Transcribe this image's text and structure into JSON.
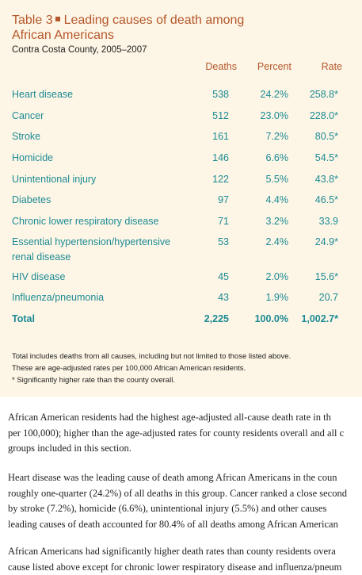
{
  "table": {
    "title_prefix": "Table 3",
    "title_rest": "Leading causes of death among",
    "title_line2": "African Americans",
    "subtitle": "Contra Costa County, 2005–2007",
    "columns": [
      "Deaths",
      "Percent",
      "Rate"
    ],
    "rows": [
      {
        "cause": "Heart disease",
        "deaths": "538",
        "percent": "24.2%",
        "rate": "258.8*"
      },
      {
        "cause": "Cancer",
        "deaths": "512",
        "percent": "23.0%",
        "rate": "228.0*"
      },
      {
        "cause": "Stroke",
        "deaths": "161",
        "percent": "7.2%",
        "rate": "80.5*"
      },
      {
        "cause": "Homicide",
        "deaths": "146",
        "percent": "6.6%",
        "rate": "54.5*"
      },
      {
        "cause": "Unintentional injury",
        "deaths": "122",
        "percent": "5.5%",
        "rate": "43.8*"
      },
      {
        "cause": "Diabetes",
        "deaths": "97",
        "percent": "4.4%",
        "rate": "46.5*"
      },
      {
        "cause": "Chronic lower respiratory disease",
        "deaths": "71",
        "percent": "3.2%",
        "rate": "33.9"
      },
      {
        "cause": "Essential hypertension/hypertensive",
        "cause2": "renal disease",
        "deaths": "53",
        "percent": "2.4%",
        "rate": "24.9*"
      },
      {
        "cause": "HIV disease",
        "deaths": "45",
        "percent": "2.0%",
        "rate": "15.6*"
      },
      {
        "cause": "Influenza/pneumonia",
        "deaths": "43",
        "percent": "1.9%",
        "rate": "20.7"
      }
    ],
    "total": {
      "cause": "Total",
      "deaths": "2,225",
      "percent": "100.0%",
      "rate": "1,002.7*"
    },
    "notes": [
      "Total includes deaths from all causes, including but not limited to those listed above.",
      "These are age-adjusted rates per 100,000 African American residents.",
      "* Significantly higher rate than the county overall."
    ]
  },
  "body": {
    "paragraphs": [
      [
        "African American residents had the highest age-adjusted all-cause death rate in th",
        "per 100,000); higher than the age-adjusted rates for county residents overall and all c",
        "groups included in this section."
      ],
      [
        "Heart disease was the leading cause of death among African Americans in the coun",
        "roughly one-quarter (24.2%) of all deaths in this group. Cancer ranked a close second",
        "by stroke (7.2%), homicide (6.6%), unintentional injury (5.5%) and other causes",
        "leading causes of death accounted for 80.4% of all deaths among African American"
      ],
      [
        "African Americans had significantly higher death rates than county residents overa",
        "cause listed above except for chronic lower respiratory disease and influenza/pneum"
      ]
    ]
  }
}
